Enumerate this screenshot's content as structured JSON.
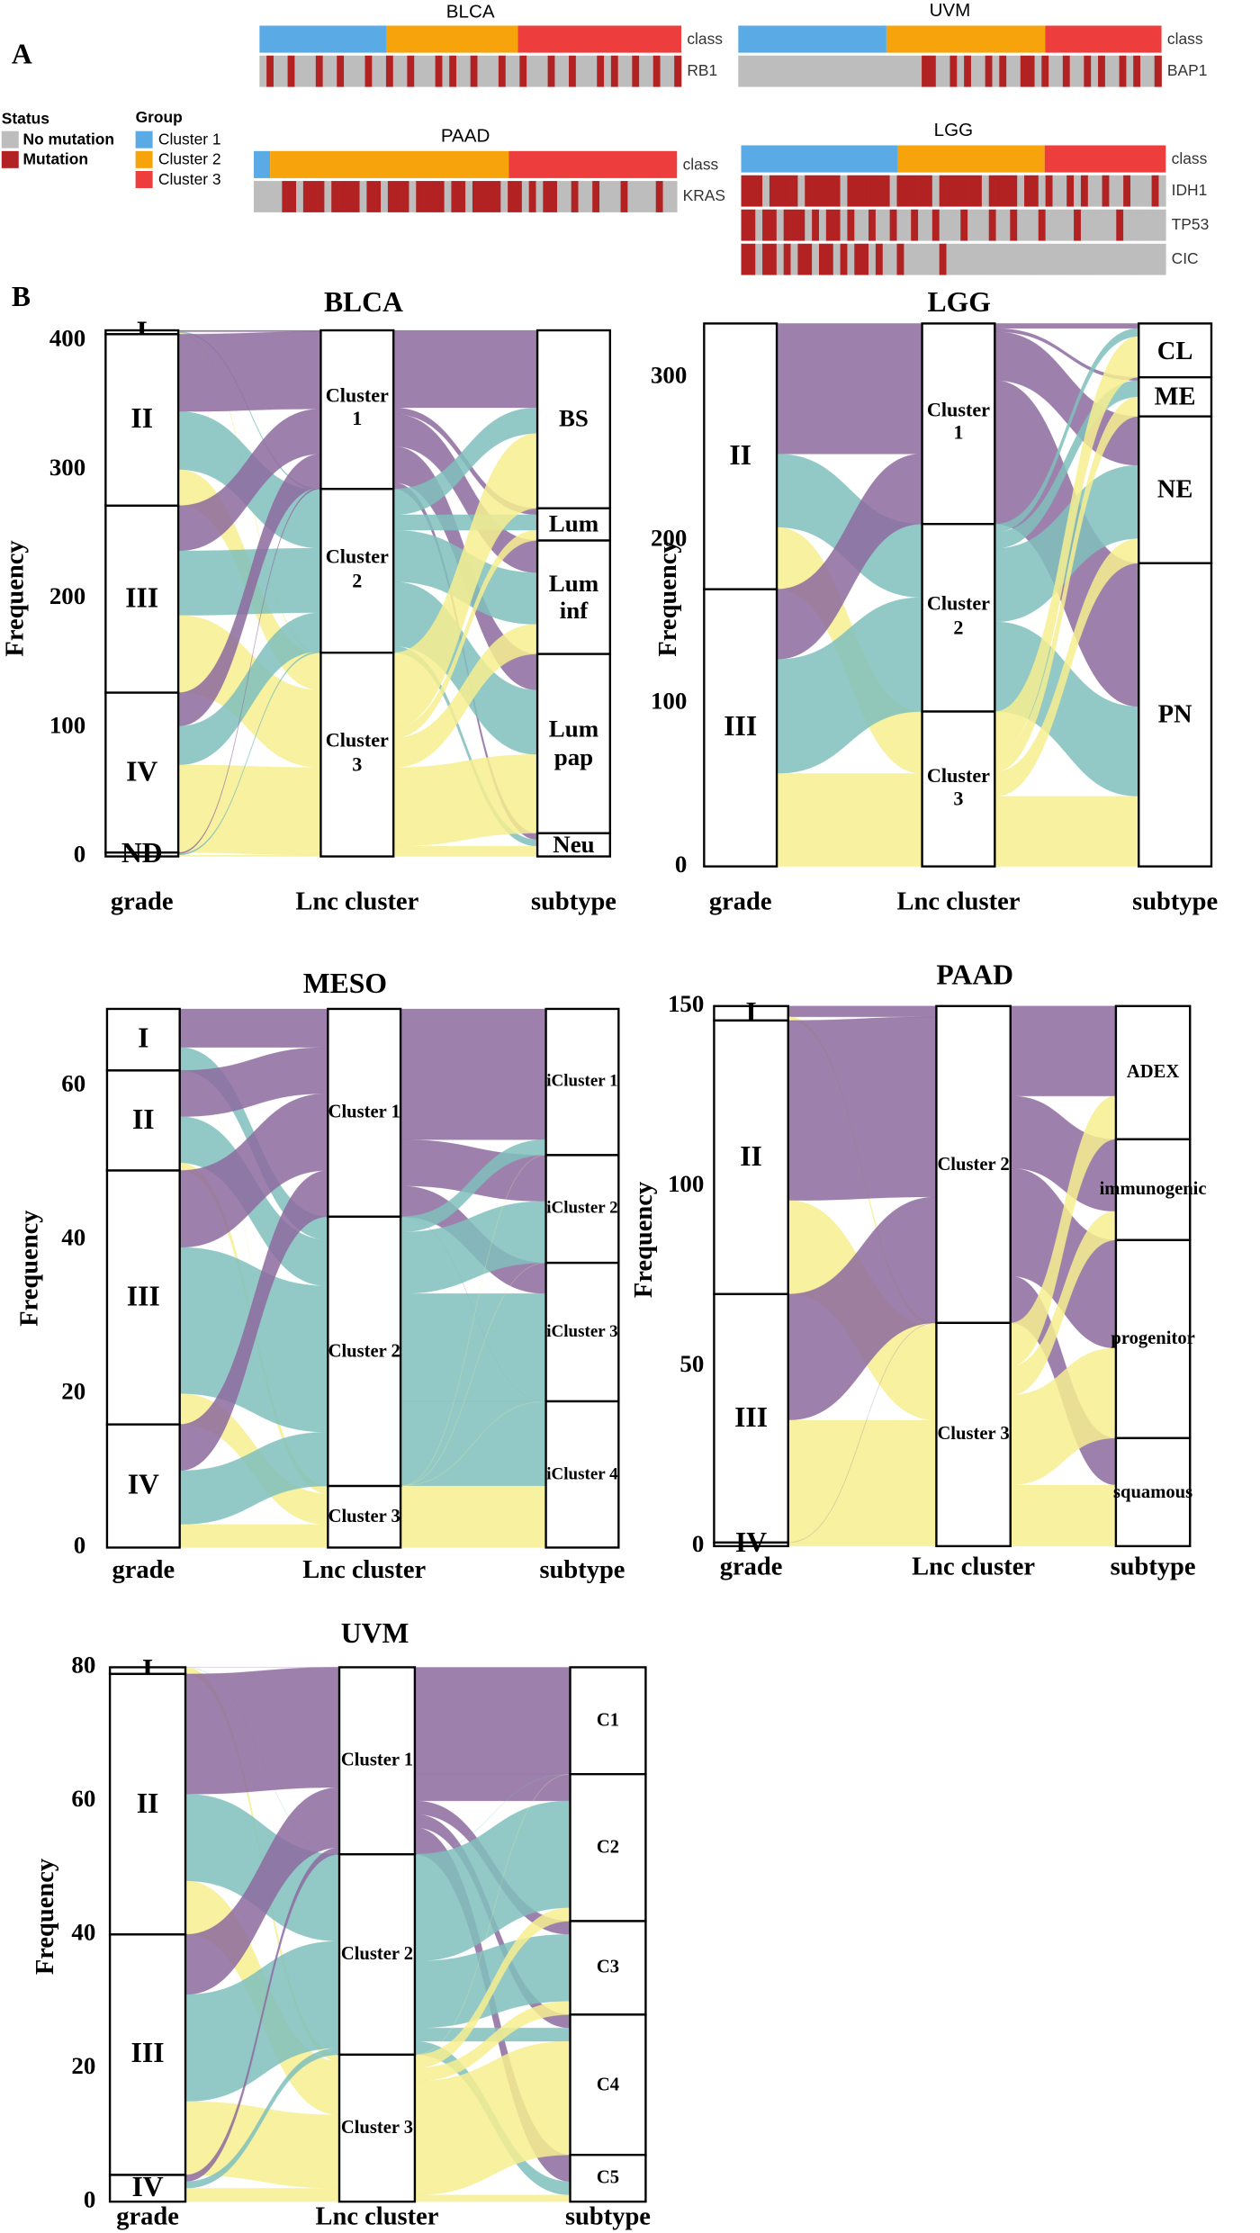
{
  "panel_a": {
    "label": "A",
    "legend": {
      "status_title": "Status",
      "status": [
        "No mutation",
        "Mutation"
      ],
      "status_colors": [
        "#bdbdbd",
        "#b22222"
      ],
      "group_title": "Group",
      "groups": [
        "Cluster 1",
        "Cluster 2",
        "Cluster 3"
      ],
      "group_colors": [
        "#5aaae6",
        "#f7a30c",
        "#ee3d3d"
      ]
    },
    "heatmaps": [
      {
        "title": "BLCA",
        "class_label": "class",
        "class_counts": [
          123,
          127,
          158
        ],
        "genes": [
          {
            "name": "RB1",
            "status": [
              0,
              1,
              0,
              0,
              1,
              0,
              0,
              0,
              1,
              0,
              0,
              1,
              0,
              0,
              0,
              1,
              0,
              0,
              1,
              0,
              0,
              1,
              0,
              0,
              0,
              1,
              0,
              1,
              0,
              0,
              1,
              0,
              0,
              0,
              1,
              0,
              0,
              1,
              0,
              0,
              0,
              1,
              0,
              0,
              1,
              0,
              0,
              0,
              1,
              0,
              1,
              0,
              0,
              1,
              0,
              0,
              1,
              0,
              0,
              1
            ]
          }
        ]
      },
      {
        "title": "UVM",
        "class_label": "class",
        "class_counts": [
          28,
          30,
          22
        ],
        "genes": [
          {
            "name": "BAP1",
            "status": [
              0,
              0,
              0,
              0,
              0,
              0,
              0,
              0,
              0,
              0,
              0,
              0,
              0,
              0,
              0,
              0,
              0,
              0,
              0,
              0,
              0,
              0,
              0,
              0,
              0,
              0,
              1,
              1,
              0,
              0,
              1,
              0,
              1,
              0,
              0,
              1,
              0,
              1,
              0,
              0,
              1,
              1,
              0,
              1,
              0,
              0,
              1,
              0,
              0,
              1,
              0,
              1,
              0,
              0,
              1,
              0,
              1,
              0,
              0,
              1
            ]
          }
        ]
      },
      {
        "title": "PAAD",
        "class_label": "class",
        "class_counts": [
          6,
          88,
          62
        ],
        "genes": [
          {
            "name": "KRAS",
            "status": [
              0,
              0,
              0,
              0,
              1,
              1,
              0,
              1,
              1,
              1,
              0,
              1,
              1,
              1,
              1,
              0,
              1,
              1,
              0,
              1,
              1,
              1,
              0,
              1,
              1,
              1,
              1,
              0,
              1,
              1,
              0,
              1,
              1,
              1,
              1,
              0,
              1,
              1,
              0,
              1,
              0,
              1,
              1,
              0,
              0,
              1,
              0,
              0,
              1,
              0,
              0,
              0,
              1,
              0,
              0,
              0,
              0,
              1,
              0,
              0
            ]
          }
        ]
      },
      {
        "title": "LGG",
        "class_label": "class",
        "class_counts": [
          123,
          115,
          95
        ],
        "genes": [
          {
            "name": "IDH1",
            "status": [
              1,
              1,
              1,
              0,
              1,
              1,
              1,
              1,
              0,
              1,
              1,
              1,
              1,
              1,
              0,
              1,
              1,
              1,
              1,
              1,
              1,
              0,
              1,
              1,
              1,
              1,
              1,
              0,
              1,
              1,
              1,
              1,
              1,
              1,
              0,
              1,
              1,
              1,
              1,
              0,
              1,
              1,
              0,
              1,
              0,
              0,
              1,
              0,
              1,
              0,
              0,
              1,
              0,
              0,
              1,
              0,
              0,
              0,
              1,
              0
            ]
          },
          {
            "name": "TP53",
            "status": [
              1,
              1,
              0,
              1,
              1,
              0,
              1,
              1,
              1,
              0,
              1,
              0,
              1,
              1,
              0,
              1,
              0,
              0,
              1,
              0,
              0,
              1,
              0,
              0,
              1,
              0,
              0,
              1,
              0,
              0,
              0,
              1,
              0,
              0,
              0,
              1,
              0,
              0,
              1,
              0,
              0,
              0,
              1,
              0,
              0,
              0,
              0,
              1,
              0,
              0,
              0,
              0,
              0,
              1,
              0,
              0,
              0,
              0,
              0,
              0
            ]
          },
          {
            "name": "CIC",
            "status": [
              1,
              1,
              0,
              1,
              1,
              0,
              1,
              0,
              1,
              1,
              0,
              1,
              1,
              0,
              1,
              0,
              1,
              1,
              0,
              1,
              0,
              0,
              1,
              0,
              0,
              0,
              0,
              0,
              1,
              0,
              0,
              0,
              0,
              0,
              0,
              0,
              0,
              0,
              0,
              0,
              0,
              0,
              0,
              0,
              0,
              0,
              0,
              0,
              0,
              0,
              0,
              0,
              0,
              0,
              0,
              0,
              0,
              0,
              0,
              0
            ]
          }
        ]
      }
    ]
  },
  "panel_b_label": "B",
  "chart_data": [
    {
      "type": "alluvial",
      "title": "BLCA",
      "ylabel": "Frequency",
      "axes": [
        "grade",
        "Lnc cluster",
        "subtype"
      ],
      "ylim": [
        0,
        410
      ],
      "yticks": [
        0,
        100,
        200,
        300,
        400
      ],
      "colors": [
        "#8d6a9f",
        "#7fbfbc",
        "#f6ee8f"
      ],
      "strata": [
        {
          "labels": [
            "I",
            "II",
            "III",
            "IV",
            "ND"
          ],
          "values": [
            3,
            133,
            145,
            124,
            3
          ]
        },
        {
          "labels": [
            "Cluster 1",
            "Cluster 2",
            "Cluster 3"
          ],
          "values": [
            123,
            127,
            158
          ]
        },
        {
          "labels": [
            "BS",
            "Lum",
            "Lum inf",
            "Lum pap",
            "Neu"
          ],
          "values": [
            138,
            25,
            88,
            139,
            18
          ]
        }
      ],
      "flows": [
        [
          [
            1,
            1,
            1
          ],
          [
            60,
            45,
            28
          ],
          [
            35,
            50,
            60
          ],
          [
            26,
            30,
            68
          ],
          [
            1,
            1,
            1
          ]
        ],
        [
          [
            60,
            5,
            25,
            28,
            5
          ],
          [
            20,
            12,
            40,
            50,
            5
          ],
          [
            58,
            8,
            23,
            61,
            8
          ]
        ]
      ]
    },
    {
      "type": "alluvial",
      "title": "LGG",
      "ylabel": "Frequency",
      "axes": [
        "grade",
        "Lnc cluster",
        "subtype"
      ],
      "ylim": [
        0,
        333
      ],
      "yticks": [
        0,
        100,
        200,
        300
      ],
      "colors": [
        "#8d6a9f",
        "#7fbfbc",
        "#f6ee8f"
      ],
      "strata": [
        {
          "labels": [
            "II",
            "III"
          ],
          "values": [
            163,
            170
          ]
        },
        {
          "labels": [
            "Cluster 1",
            "Cluster 2",
            "Cluster 3"
          ],
          "values": [
            123,
            115,
            95
          ]
        },
        {
          "labels": [
            "CL",
            "ME",
            "NE",
            "PN"
          ],
          "values": [
            33,
            24,
            90,
            186
          ]
        }
      ],
      "flows": [
        [
          [
            80,
            45,
            38
          ],
          [
            43,
            70,
            57
          ]
        ],
        [
          [
            3,
            2,
            30,
            88
          ],
          [
            5,
            10,
            45,
            55
          ],
          [
            25,
            12,
            15,
            43
          ]
        ]
      ]
    },
    {
      "type": "alluvial",
      "title": "MESO",
      "ylabel": "Frequency",
      "axes": [
        "grade",
        "Lnc cluster",
        "subtype"
      ],
      "ylim": [
        0,
        70
      ],
      "yticks": [
        0,
        20,
        40,
        60
      ],
      "colors": [
        "#8d6a9f",
        "#7fbfbc",
        "#f6ee8f"
      ],
      "strata": [
        {
          "labels": [
            "I",
            "II",
            "III",
            "IV"
          ],
          "values": [
            8,
            13,
            33,
            16
          ]
        },
        {
          "labels": [
            "Cluster 1",
            "Cluster 2",
            "Cluster 3"
          ],
          "values": [
            27,
            35,
            8
          ]
        },
        {
          "labels": [
            "iCluster 1",
            "iCluster 2",
            "iCluster 3",
            "iCluster 4"
          ],
          "values": [
            19,
            14,
            18,
            19
          ]
        }
      ],
      "flows": [
        [
          [
            5,
            3,
            0
          ],
          [
            6,
            6,
            1
          ],
          [
            10,
            19,
            4
          ],
          [
            6,
            7,
            3
          ]
        ],
        [
          [
            17,
            6,
            4,
            0
          ],
          [
            2,
            8,
            14,
            11
          ],
          [
            0,
            0,
            0,
            8
          ]
        ]
      ]
    },
    {
      "type": "alluvial",
      "title": "PAAD",
      "ylabel": "Frequency",
      "axes": [
        "grade",
        "Lnc cluster",
        "subtype"
      ],
      "ylim": [
        0,
        150
      ],
      "yticks": [
        0,
        50,
        100,
        150
      ],
      "colors": [
        "#8d6a9f",
        "#f6ee8f"
      ],
      "strata": [
        {
          "labels": [
            "I",
            "II",
            "III",
            "IV"
          ],
          "values": [
            4,
            76,
            69,
            1
          ]
        },
        {
          "labels": [
            "Cluster 2",
            "Cluster 3"
          ],
          "values": [
            88,
            62
          ]
        },
        {
          "labels": [
            "ADEX",
            "immunogenic",
            "progenitor",
            "squamous"
          ],
          "values": [
            37,
            28,
            55,
            30
          ]
        }
      ],
      "flows": [
        [
          [
            3,
            1
          ],
          [
            50,
            26
          ],
          [
            35,
            34
          ],
          [
            0,
            1
          ]
        ],
        [
          [
            25,
            20,
            30,
            13
          ],
          [
            12,
            8,
            25,
            17
          ]
        ]
      ]
    },
    {
      "type": "alluvial",
      "title": "UVM",
      "ylabel": "Frequency",
      "axes": [
        "grade",
        "Lnc cluster",
        "subtype"
      ],
      "ylim": [
        0,
        80
      ],
      "yticks": [
        0,
        20,
        40,
        60,
        80
      ],
      "colors": [
        "#8d6a9f",
        "#7fbfbc",
        "#f6ee8f"
      ],
      "strata": [
        {
          "labels": [
            "I",
            "II",
            "III",
            "IV"
          ],
          "values": [
            1,
            39,
            36,
            4
          ]
        },
        {
          "labels": [
            "Cluster 1",
            "Cluster 2",
            "Cluster 3"
          ],
          "values": [
            28,
            30,
            22
          ]
        },
        {
          "labels": [
            "C1",
            "C2",
            "C3",
            "C4",
            "C5"
          ],
          "values": [
            16,
            22,
            14,
            21,
            7
          ]
        }
      ],
      "flows": [
        [
          [
            0,
            0,
            1
          ],
          [
            18,
            13,
            8
          ],
          [
            9,
            16,
            11
          ],
          [
            1,
            1,
            2
          ]
        ],
        [
          [
            16,
            4,
            2,
            2,
            4
          ],
          [
            0,
            16,
            10,
            2,
            2
          ],
          [
            0,
            2,
            2,
            17,
            1
          ]
        ]
      ]
    }
  ]
}
